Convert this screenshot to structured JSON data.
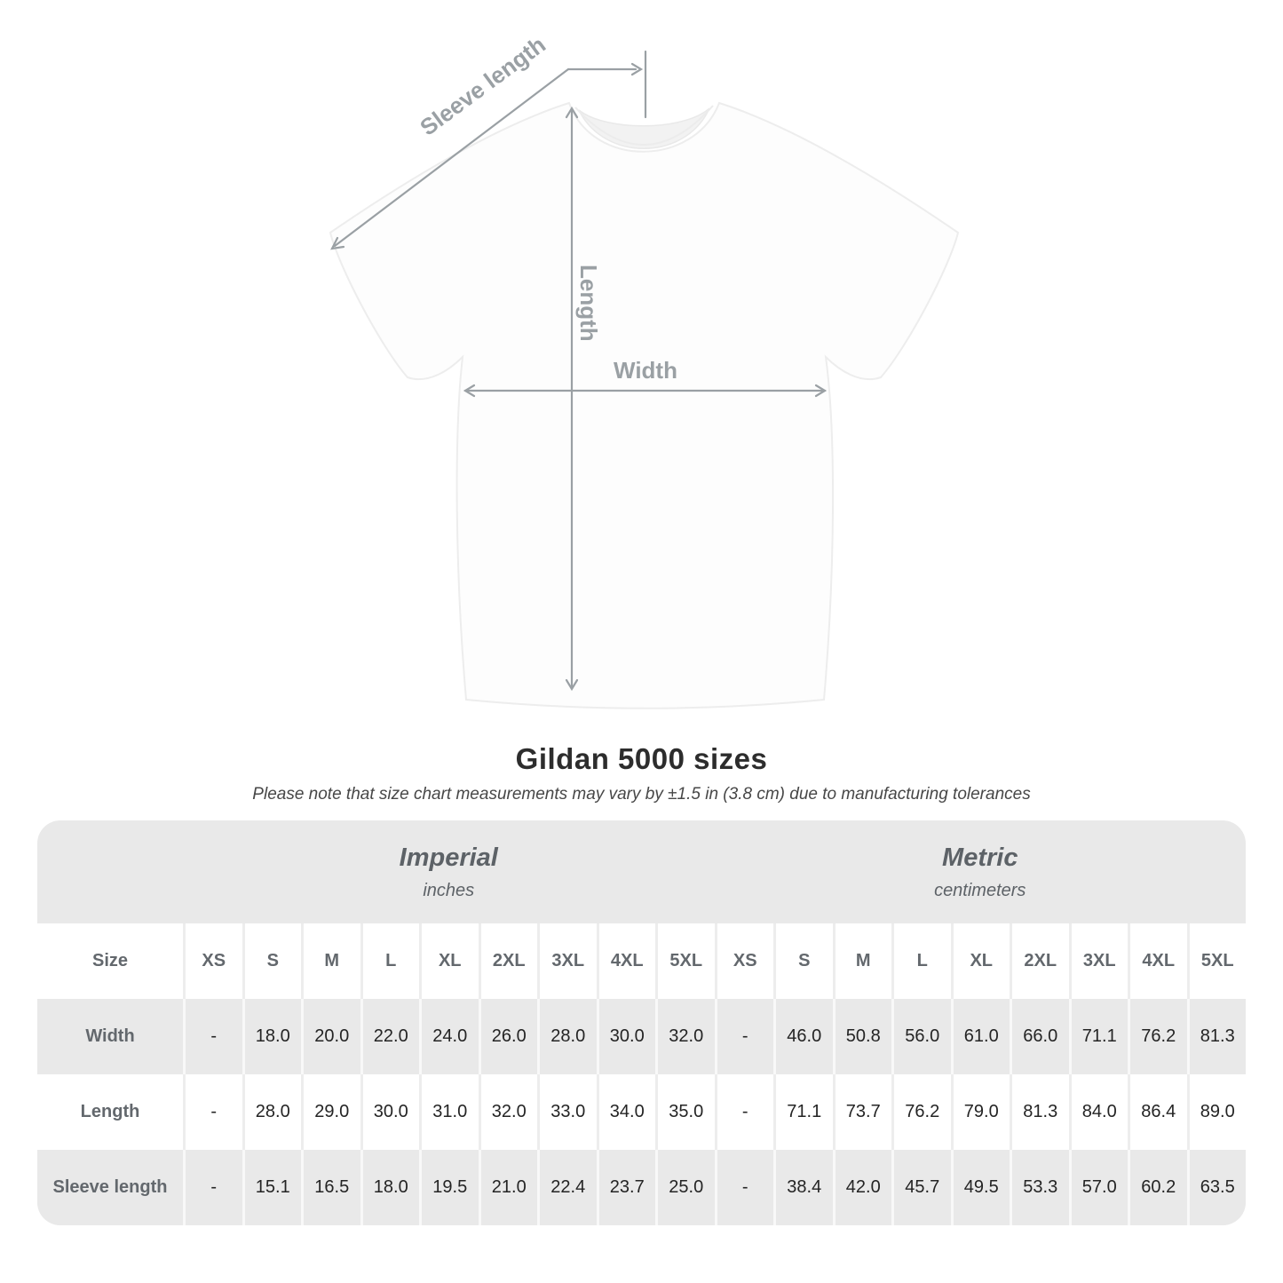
{
  "title": "Gildan 5000 sizes",
  "note": "Please note that size chart measurements may vary by ±1.5 in (3.8 cm) due to manufacturing tolerances",
  "diagram": {
    "labels": {
      "sleeve_length": "Sleeve length",
      "length": "Length",
      "width": "Width"
    },
    "arrow_color": "#9aa0a4"
  },
  "colors": {
    "card_gray": "#e9e9e9",
    "row_white": "#ffffff",
    "header_text": "#63686d",
    "value_text": "#242424",
    "title_text": "#2d2d2d"
  },
  "chart_data": {
    "type": "table",
    "title": "Gildan 5000 sizes",
    "corner_header": "Size",
    "sections": [
      {
        "name": "Imperial",
        "unit": "inches"
      },
      {
        "name": "Metric",
        "unit": "centimeters"
      }
    ],
    "size_columns": [
      "XS",
      "S",
      "M",
      "L",
      "XL",
      "2XL",
      "3XL",
      "4XL",
      "5XL"
    ],
    "rows": [
      {
        "label": "Width",
        "imperial": [
          "-",
          "18.0",
          "20.0",
          "22.0",
          "24.0",
          "26.0",
          "28.0",
          "30.0",
          "32.0"
        ],
        "metric": [
          "-",
          "46.0",
          "50.8",
          "56.0",
          "61.0",
          "66.0",
          "71.1",
          "76.2",
          "81.3"
        ]
      },
      {
        "label": "Length",
        "imperial": [
          "-",
          "28.0",
          "29.0",
          "30.0",
          "31.0",
          "32.0",
          "33.0",
          "34.0",
          "35.0"
        ],
        "metric": [
          "-",
          "71.1",
          "73.7",
          "76.2",
          "79.0",
          "81.3",
          "84.0",
          "86.4",
          "89.0"
        ]
      },
      {
        "label": "Sleeve length",
        "imperial": [
          "-",
          "15.1",
          "16.5",
          "18.0",
          "19.5",
          "21.0",
          "22.4",
          "23.7",
          "25.0"
        ],
        "metric": [
          "-",
          "38.4",
          "42.0",
          "45.7",
          "49.5",
          "53.3",
          "57.0",
          "60.2",
          "63.5"
        ]
      }
    ]
  }
}
